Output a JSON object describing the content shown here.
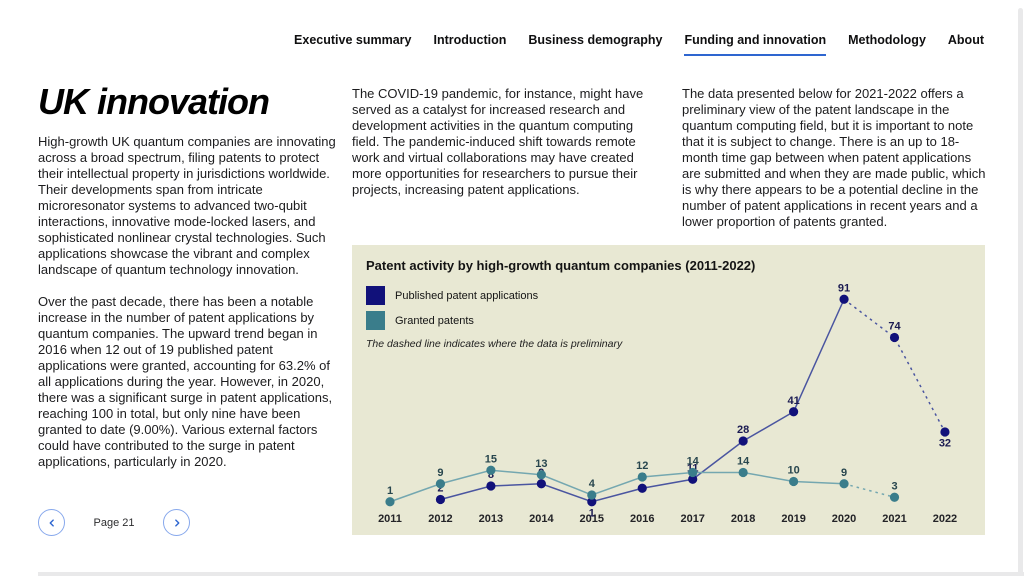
{
  "nav": {
    "tabs": [
      {
        "label": "Executive summary",
        "active": false
      },
      {
        "label": "Introduction",
        "active": false
      },
      {
        "label": "Business demography",
        "active": false
      },
      {
        "label": "Funding and innovation",
        "active": true
      },
      {
        "label": "Methodology",
        "active": false
      },
      {
        "label": "About",
        "active": false
      }
    ]
  },
  "article": {
    "title": "UK innovation",
    "left_paragraphs": [
      "High-growth UK quantum companies are innovating across a broad spectrum, filing patents to protect their intellectual property in jurisdictions worldwide. Their developments span from intricate microresonator systems to advanced two-qubit interactions, innovative mode-locked lasers, and sophisticated nonlinear crystal technologies. Such applications showcase the vibrant and complex landscape of quantum technology innovation.",
      "Over the past decade, there has been a notable increase in the number of patent applications by quantum companies. The upward trend began in 2016 when 12 out of 19 published patent applications were granted, accounting for 63.2% of all applications during the year. However, in 2020, there was a significant surge in patent applications, reaching 100 in total, but only nine have been granted to date (9.00%). Various external factors could have contributed to the surge in patent applications, particularly in 2020."
    ],
    "middle_paragraph": "The COVID-19 pandemic, for instance, might have served as a catalyst for increased research and development activities in the quantum computing field. The pandemic-induced shift towards remote work and virtual collaborations may have created more opportunities for researchers to pursue their projects, increasing patent applications.",
    "right_paragraph": "The data presented below for 2021-2022 offers a preliminary view of the patent landscape in the quantum computing field, but it is important to note that it is subject to change. There is an up to 18-month time gap between when patent applications are submitted and when they are made public, which is why there appears to be a potential decline in the number of patent applications in recent years and a lower proportion of patents granted."
  },
  "chart_data": {
    "type": "line",
    "title": "Patent activity by high-growth quantum companies (2011-2022)",
    "note": "The dashed line indicates where the data is preliminary",
    "categories": [
      "2011",
      "2012",
      "2013",
      "2014",
      "2015",
      "2016",
      "2017",
      "2018",
      "2019",
      "2020",
      "2021",
      "2022"
    ],
    "dashed_from": "2020",
    "grid": false,
    "legend_position": "top-left",
    "background": "#e8e8d3",
    "ylim": [
      0,
      100
    ],
    "series": [
      {
        "name": "Published patent applications",
        "color": "#11117a",
        "line_color": "#4a55a0",
        "label_color": "#1b1b52",
        "values": [
          null,
          2,
          8,
          9,
          1,
          7,
          11,
          28,
          41,
          91,
          74,
          32
        ],
        "labels_below": [
          "2015",
          "2022"
        ]
      },
      {
        "name": "Granted patents",
        "color": "#3a7d8b",
        "line_color": "#74a7b0",
        "label_color": "#28464e",
        "values": [
          1,
          9,
          15,
          13,
          4,
          12,
          14,
          14,
          10,
          9,
          3,
          null
        ],
        "labels_below": []
      }
    ]
  },
  "footer": {
    "page_label": "Page 21"
  },
  "colors": {
    "accent_blue": "#2e66d0",
    "panel_bg": "#e8e8d3",
    "pager_border": "#87a8ec"
  }
}
